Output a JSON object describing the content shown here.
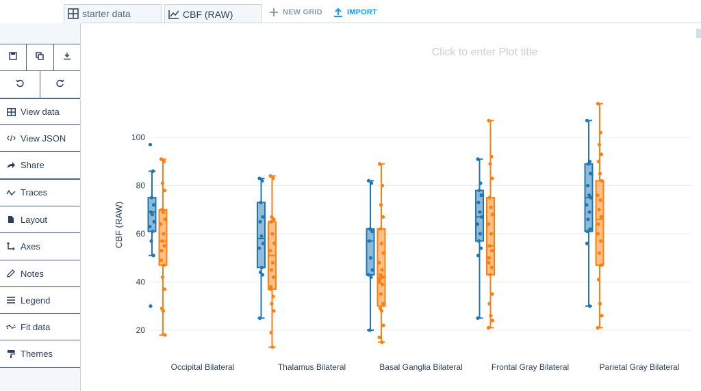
{
  "tabs": [
    {
      "label": "starter data",
      "icon": "grid-icon"
    },
    {
      "label": "CBF (RAW)",
      "icon": "line-chart-icon"
    }
  ],
  "toolbar": {
    "new_grid": "NEW GRID",
    "import": "IMPORT"
  },
  "sidebar": {
    "tools": [
      "save-icon",
      "duplicate-icon",
      "download-icon",
      "undo-icon",
      "redo-icon"
    ],
    "items": [
      {
        "label": "View data",
        "icon": "table-icon"
      },
      {
        "label": "View JSON",
        "icon": "code-icon"
      },
      {
        "label": "Share",
        "icon": "share-icon"
      },
      {
        "label": "Traces",
        "icon": "traces-icon"
      },
      {
        "label": "Layout",
        "icon": "layout-icon"
      },
      {
        "label": "Axes",
        "icon": "axes-icon"
      },
      {
        "label": "Notes",
        "icon": "pencil-icon"
      },
      {
        "label": "Legend",
        "icon": "legend-icon"
      },
      {
        "label": "Fit data",
        "icon": "fit-data-icon"
      },
      {
        "label": "Themes",
        "icon": "paint-roller-icon"
      }
    ]
  },
  "plot": {
    "title_placeholder": "Click to enter Plot title"
  },
  "colors": {
    "blue": "#1f77b4",
    "orange": "#ff7f0e",
    "grid": "#e6ecf3",
    "accent": "#119dff"
  },
  "chart_data": {
    "type": "box",
    "title": "",
    "xlabel": "",
    "ylabel": "CBF (RAW)",
    "ylim": [
      15,
      115
    ],
    "yticks": [
      20,
      40,
      60,
      80,
      100
    ],
    "grid": true,
    "categories": [
      "Occipital Bilateral",
      "Thalamus Bilateral",
      "Basal Ganglia Bilateral",
      "Frontal Gray Bilateral",
      "Parietal Gray Bilateral"
    ],
    "series": [
      {
        "color": "blue",
        "boxes": [
          {
            "min": 51,
            "q1": 61,
            "median": 69,
            "q3": 75,
            "max": 86,
            "points": [
              97,
              86,
              75,
              72,
              69,
              68,
              65,
              63,
              61,
              57,
              51,
              30
            ]
          },
          {
            "min": 25,
            "q1": 46,
            "median": 58,
            "q3": 73,
            "max": 83,
            "points": [
              83,
              82,
              73,
              67,
              65,
              59,
              56,
              54,
              46,
              44,
              43,
              25
            ]
          },
          {
            "min": 20,
            "q1": 43,
            "median": 57,
            "q3": 62,
            "max": 82,
            "points": [
              82,
              81,
              62,
              61,
              57,
              50,
              45,
              43,
              42,
              20
            ]
          },
          {
            "min": 25,
            "q1": 57,
            "median": 67,
            "q3": 78,
            "max": 91,
            "points": [
              91,
              81,
              78,
              76,
              73,
              69,
              67,
              64,
              60,
              57,
              54,
              51,
              25
            ]
          },
          {
            "min": 30,
            "q1": 61,
            "median": 75,
            "q3": 89,
            "max": 107,
            "points": [
              107,
              90,
              89,
              85,
              80,
              76,
              75,
              72,
              69,
              66,
              62,
              61,
              56,
              30
            ]
          }
        ]
      },
      {
        "color": "orange",
        "boxes": [
          {
            "min": 18,
            "q1": 47,
            "median": 57,
            "q3": 70,
            "max": 91,
            "points": [
              91,
              90,
              81,
              78,
              70,
              69,
              66,
              64,
              60,
              57,
              55,
              53,
              49,
              47,
              42,
              37,
              29,
              28,
              18
            ]
          },
          {
            "min": 13,
            "q1": 37,
            "median": 51,
            "q3": 65,
            "max": 84,
            "points": [
              84,
              83,
              67,
              66,
              65,
              60,
              56,
              53,
              48,
              45,
              42,
              38,
              37,
              34,
              31,
              28,
              19,
              13
            ]
          },
          {
            "min": 15,
            "q1": 30,
            "median": 42,
            "q3": 62,
            "max": 89,
            "points": [
              89,
              80,
              72,
              67,
              62,
              56,
              52,
              48,
              45,
              43,
              42,
              41,
              40,
              39,
              35,
              31,
              29,
              28,
              22,
              17,
              15
            ]
          },
          {
            "min": 21,
            "q1": 43,
            "median": 55,
            "q3": 75,
            "max": 107,
            "points": [
              107,
              92,
              89,
              83,
              75,
              71,
              68,
              64,
              60,
              55,
              53,
              50,
              48,
              46,
              43,
              35,
              31,
              26,
              24,
              21
            ]
          },
          {
            "min": 21,
            "q1": 47,
            "median": 66,
            "q3": 82,
            "max": 114,
            "points": [
              114,
              102,
              97,
              93,
              90,
              85,
              82,
              76,
              74,
              70,
              67,
              64,
              60,
              57,
              52,
              47,
              41,
              31,
              26,
              21
            ]
          }
        ]
      }
    ]
  }
}
